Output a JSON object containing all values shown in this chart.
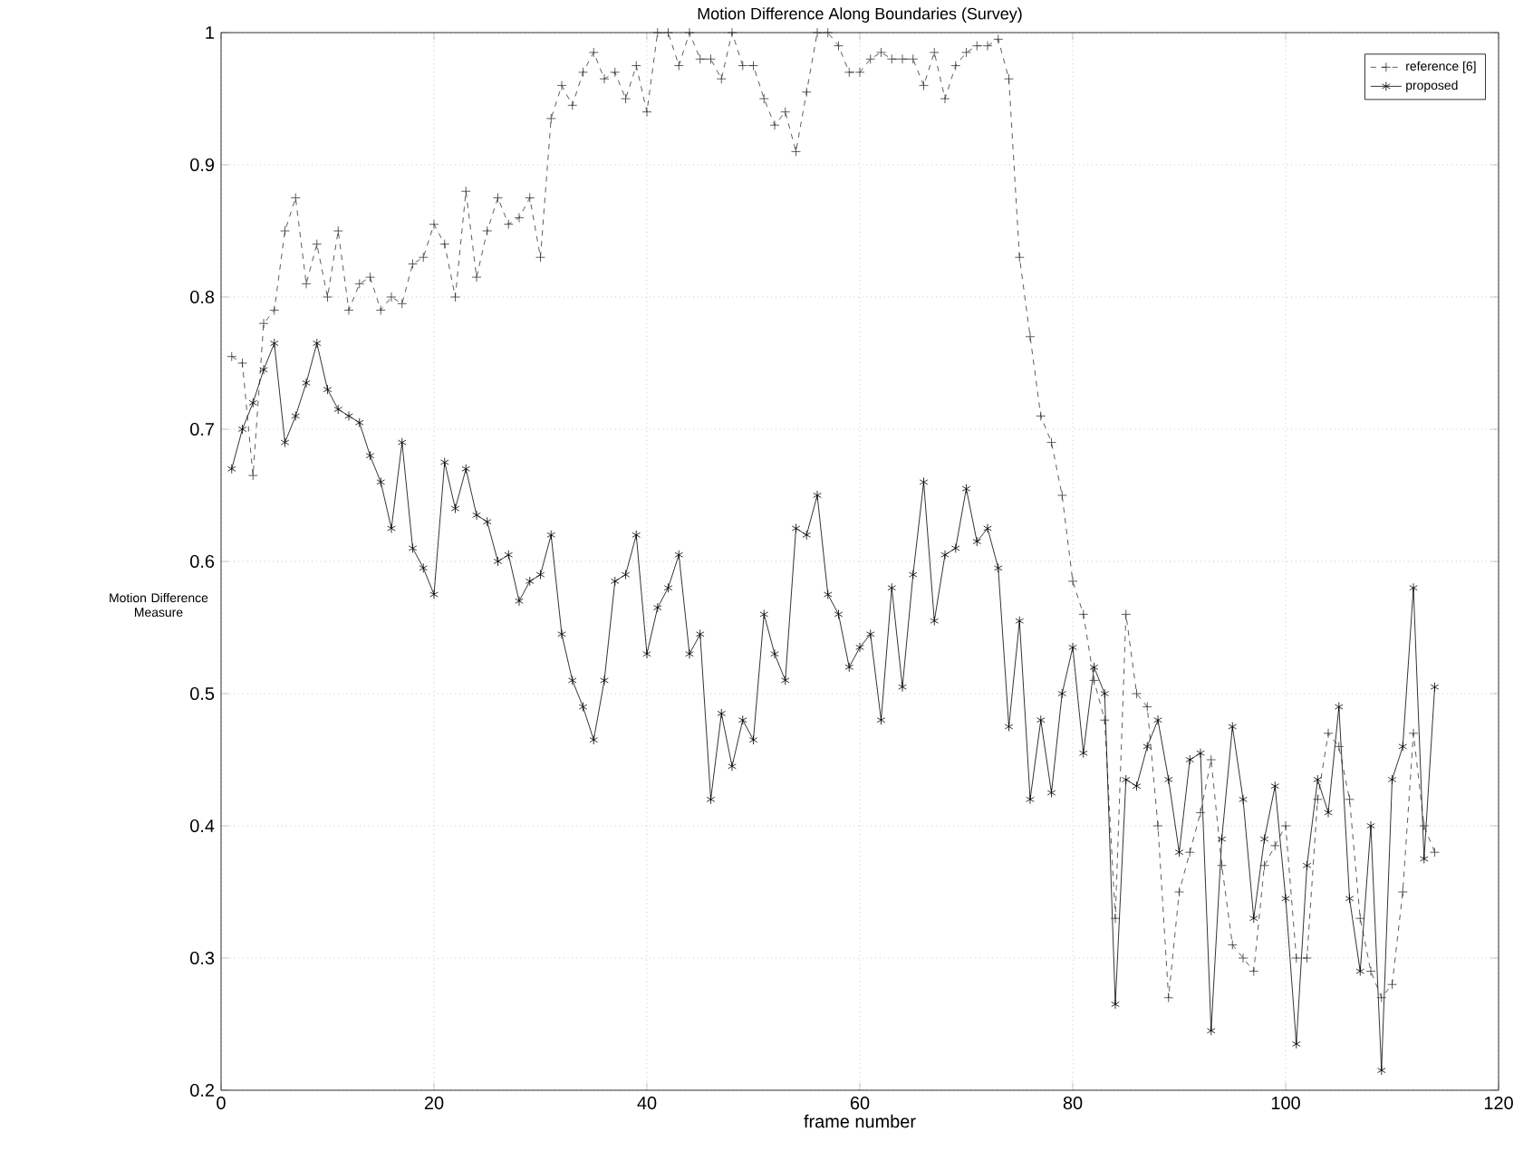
{
  "chart_data": {
    "type": "line",
    "title": "Motion Difference Along Boundaries (Survey)",
    "xlabel": "frame number",
    "ylabel": "Motion Difference Measure",
    "x": [
      1,
      2,
      3,
      4,
      5,
      6,
      7,
      8,
      9,
      10,
      11,
      12,
      13,
      14,
      15,
      16,
      17,
      18,
      19,
      20,
      21,
      22,
      23,
      24,
      25,
      26,
      27,
      28,
      29,
      30,
      31,
      32,
      33,
      34,
      35,
      36,
      37,
      38,
      39,
      40,
      41,
      42,
      43,
      44,
      45,
      46,
      47,
      48,
      49,
      50,
      51,
      52,
      53,
      54,
      55,
      56,
      57,
      58,
      59,
      60,
      61,
      62,
      63,
      64,
      65,
      66,
      67,
      68,
      69,
      70,
      71,
      72,
      73,
      74,
      75,
      76,
      77,
      78,
      79,
      80,
      81,
      82,
      83,
      84,
      85,
      86,
      87,
      88,
      89,
      90,
      91,
      92,
      93,
      94,
      95,
      96,
      97,
      98,
      99,
      100,
      101,
      102,
      103,
      104,
      105,
      106,
      107,
      108,
      109,
      110,
      111,
      112,
      113,
      114
    ],
    "series": [
      {
        "name": "reference [6]",
        "color": "#333333",
        "line_style": "dashed",
        "marker": "cross",
        "values": [
          0.755,
          0.75,
          0.665,
          0.78,
          0.79,
          0.85,
          0.875,
          0.81,
          0.84,
          0.8,
          0.85,
          0.79,
          0.81,
          0.815,
          0.79,
          0.8,
          0.795,
          0.825,
          0.83,
          0.855,
          0.84,
          0.8,
          0.88,
          0.815,
          0.85,
          0.875,
          0.855,
          0.86,
          0.875,
          0.83,
          0.935,
          0.96,
          0.945,
          0.97,
          0.985,
          0.965,
          0.97,
          0.95,
          0.975,
          0.94,
          1.0,
          1.0,
          0.975,
          1.0,
          0.98,
          0.98,
          0.965,
          1.0,
          0.975,
          0.975,
          0.95,
          0.93,
          0.94,
          0.91,
          0.955,
          1.0,
          1.0,
          0.99,
          0.97,
          0.97,
          0.98,
          0.985,
          0.98,
          0.98,
          0.98,
          0.96,
          0.985,
          0.95,
          0.975,
          0.985,
          0.99,
          0.99,
          0.995,
          0.965,
          0.83,
          0.77,
          0.71,
          0.69,
          0.65,
          0.585,
          0.56,
          0.51,
          0.48,
          0.33,
          0.56,
          0.5,
          0.49,
          0.4,
          0.27,
          0.35,
          0.38,
          0.41,
          0.45,
          0.37,
          0.31,
          0.3,
          0.29,
          0.37,
          0.385,
          0.4,
          0.3,
          0.3,
          0.42,
          0.47,
          0.46,
          0.42,
          0.33,
          0.29,
          0.27,
          0.28,
          0.35,
          0.47,
          0.4,
          0.38
        ]
      },
      {
        "name": "proposed",
        "color": "#000000",
        "line_style": "solid",
        "marker": "cross",
        "values": [
          0.67,
          0.7,
          0.72,
          0.745,
          0.765,
          0.69,
          0.71,
          0.735,
          0.765,
          0.73,
          0.715,
          0.71,
          0.705,
          0.68,
          0.66,
          0.625,
          0.69,
          0.61,
          0.595,
          0.575,
          0.675,
          0.64,
          0.67,
          0.635,
          0.63,
          0.6,
          0.605,
          0.57,
          0.585,
          0.59,
          0.62,
          0.545,
          0.51,
          0.49,
          0.465,
          0.51,
          0.585,
          0.59,
          0.62,
          0.53,
          0.565,
          0.58,
          0.605,
          0.53,
          0.545,
          0.42,
          0.485,
          0.445,
          0.48,
          0.465,
          0.56,
          0.53,
          0.51,
          0.625,
          0.62,
          0.65,
          0.575,
          0.56,
          0.52,
          0.535,
          0.545,
          0.48,
          0.58,
          0.505,
          0.59,
          0.66,
          0.555,
          0.605,
          0.61,
          0.655,
          0.615,
          0.625,
          0.595,
          0.475,
          0.555,
          0.42,
          0.48,
          0.425,
          0.5,
          0.535,
          0.455,
          0.52,
          0.5,
          0.265,
          0.435,
          0.43,
          0.46,
          0.48,
          0.435,
          0.38,
          0.45,
          0.455,
          0.245,
          0.39,
          0.475,
          0.42,
          0.33,
          0.39,
          0.43,
          0.345,
          0.235,
          0.37,
          0.435,
          0.41,
          0.49,
          0.345,
          0.29,
          0.4,
          0.215,
          0.435,
          0.46,
          0.58,
          0.375,
          0.505
        ]
      }
    ],
    "xlim": [
      0,
      120
    ],
    "ylim": [
      0.2,
      1
    ],
    "xticks": [
      0,
      20,
      40,
      60,
      80,
      100,
      120
    ],
    "yticks": [
      0.2,
      0.3,
      0.4,
      0.5,
      0.6,
      0.7,
      0.8,
      0.9,
      1
    ],
    "grid": true,
    "legend": "top right"
  }
}
